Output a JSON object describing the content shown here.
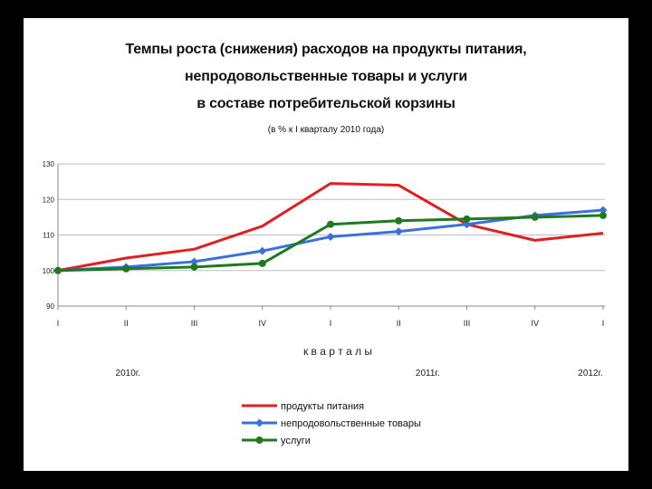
{
  "chart_data": {
    "type": "line",
    "title_lines": [
      "Темпы роста (снижения) расходов на продукты питания,",
      "непродовольственные товары и услуги",
      "в составе потребительской корзины"
    ],
    "subtitle": "(в % к I кварталу 2010 года)",
    "categories": [
      "I",
      "II",
      "III",
      "IV",
      "I",
      "II",
      "III",
      "IV",
      "I"
    ],
    "xlabel": "к в а р т а л ы",
    "year_labels": [
      "2010г.",
      "2011г.",
      "2012г."
    ],
    "ylim": [
      90,
      130
    ],
    "yticks": [
      90,
      100,
      110,
      120,
      130
    ],
    "grid": true,
    "legend_position": "bottom",
    "series": [
      {
        "name": "продукты питания",
        "color": "#e02020",
        "marker": "none",
        "values": [
          100,
          103.5,
          106,
          112.5,
          124.5,
          124,
          113,
          108.5,
          110.5
        ]
      },
      {
        "name": "непродовольственные товары",
        "color": "#3a6fe0",
        "marker": "diamond",
        "values": [
          100,
          101,
          102.5,
          105.5,
          109.5,
          111,
          113,
          115.5,
          117
        ]
      },
      {
        "name": "услуги",
        "color": "#1e7a1e",
        "marker": "circle",
        "values": [
          100,
          100.5,
          101,
          102,
          113,
          114,
          114.5,
          115,
          115.5
        ]
      }
    ]
  }
}
